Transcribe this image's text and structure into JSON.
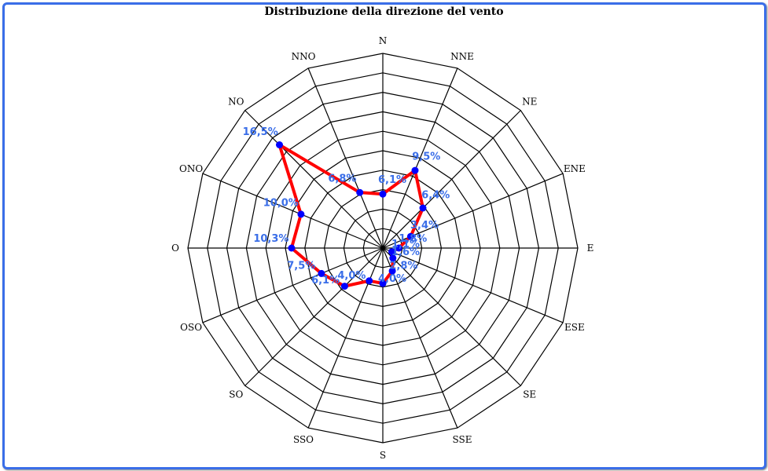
{
  "chart_data": {
    "type": "radar",
    "title": "Distribuzione della direzione del vento",
    "categories": [
      "N",
      "NNE",
      "NE",
      "ENE",
      "E",
      "ESE",
      "SE",
      "SSE",
      "S",
      "SSO",
      "SO",
      "OSO",
      "O",
      "ONO",
      "NO",
      "NNO"
    ],
    "values": [
      6.1,
      9.5,
      6.4,
      3.4,
      1.8,
      1.1,
      1.6,
      2.8,
      4.0,
      4.0,
      6.1,
      7.5,
      10.3,
      10.0,
      16.5,
      6.8
    ],
    "value_labels": [
      "6,1%",
      "9,5%",
      "6,4%",
      "3,4%",
      "1,8%",
      "1,1%",
      "1,6%",
      "2,8%",
      "4,0%",
      "4,0%",
      "6,1%",
      "7,5%",
      "10,3%",
      "10,0%",
      "16,5%",
      "6,8%"
    ],
    "rings": 10,
    "range": [
      0,
      22
    ],
    "colors": {
      "line": "#ff0000",
      "marker": "#0000ff",
      "label": "#3a6ee8",
      "grid": "#000000",
      "frame": "#3a6ee8"
    }
  }
}
